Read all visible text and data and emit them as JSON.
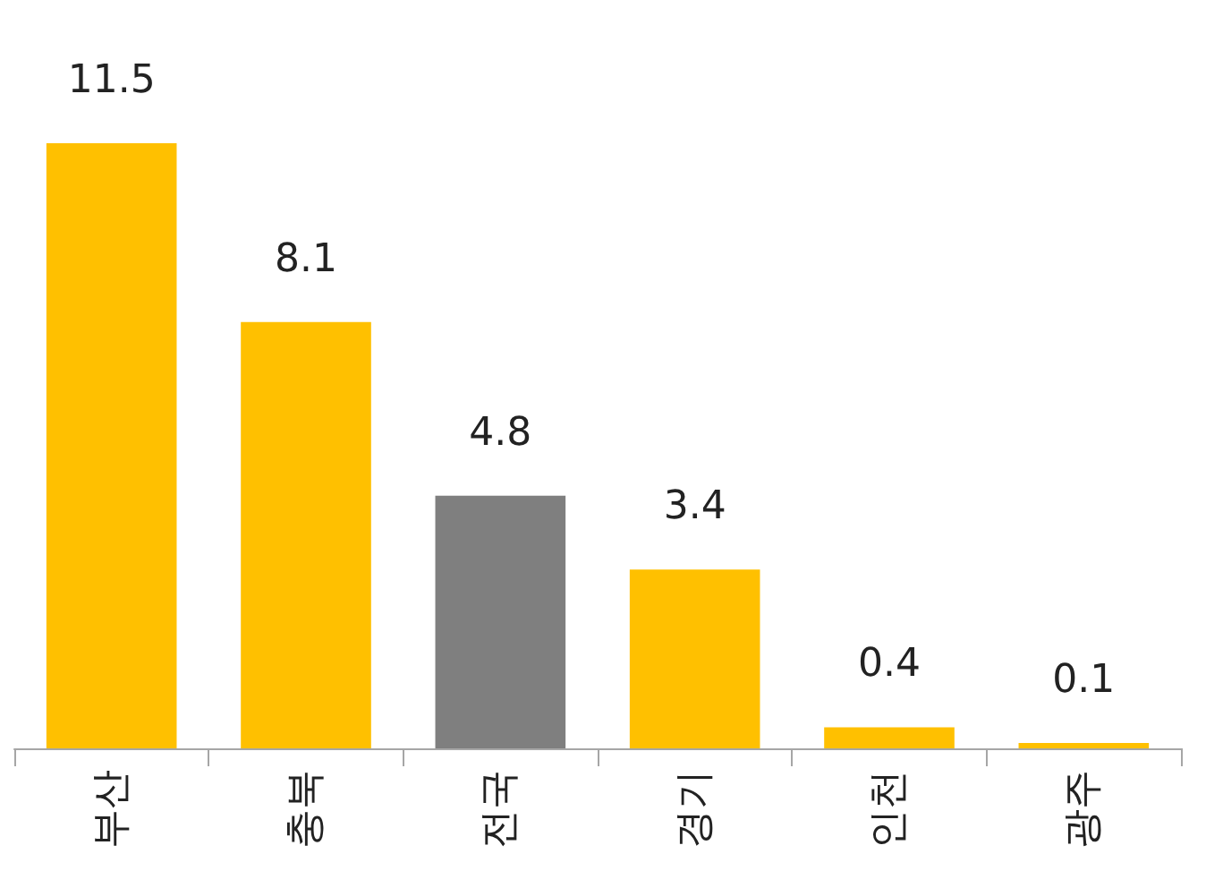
{
  "chart_data": {
    "type": "bar",
    "categories": [
      "부산",
      "충북",
      "전국",
      "경기",
      "인천",
      "광주"
    ],
    "values": [
      11.5,
      8.1,
      4.8,
      3.4,
      0.4,
      0.1
    ],
    "colors": [
      "#ffc000",
      "#ffc000",
      "#7f7f7f",
      "#ffc000",
      "#ffc000",
      "#ffc000"
    ],
    "data_labels": true
  }
}
